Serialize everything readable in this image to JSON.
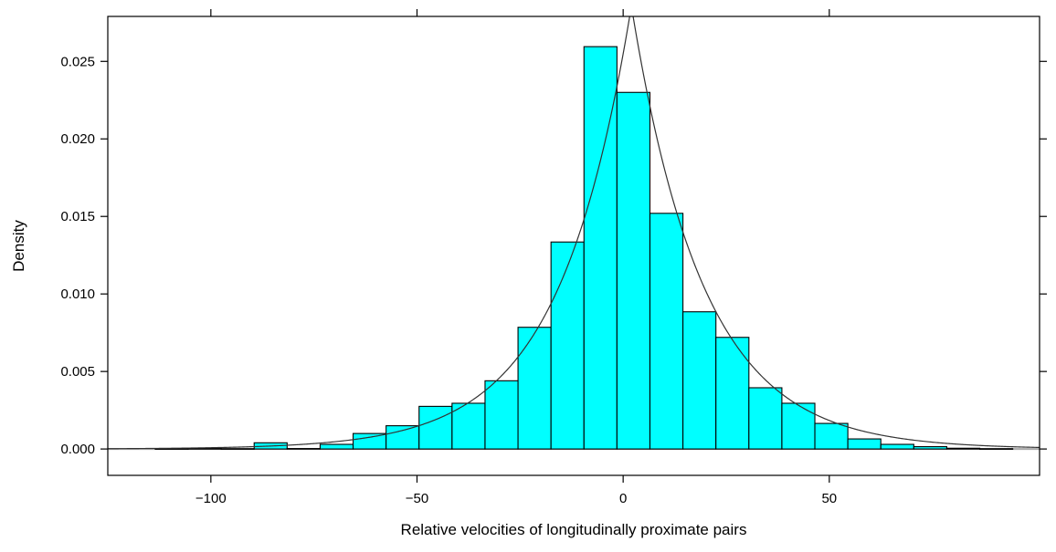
{
  "chart_data": {
    "type": "histogram",
    "title": "",
    "xlabel": "Relative velocities of longitudinally proximate pairs",
    "ylabel": "Density",
    "xlim": [
      -125,
      101
    ],
    "ylim": [
      -0.0017,
      0.0279
    ],
    "x_ticks": [
      -100,
      -50,
      0,
      50
    ],
    "x_tick_labels": [
      "-100",
      "-50",
      "0",
      "50"
    ],
    "y_ticks": [
      0.0,
      0.005,
      0.01,
      0.015,
      0.02,
      0.025
    ],
    "y_tick_labels": [
      "0.000",
      "0.005",
      "0.010",
      "0.015",
      "0.020",
      "0.025"
    ],
    "bar_fill": "#00ffff",
    "bar_stroke": "#000000",
    "bins": [
      {
        "x0": -113.5,
        "x1": -105.5,
        "density": 2e-05
      },
      {
        "x0": -105.5,
        "x1": -97.5,
        "density": 3e-05
      },
      {
        "x0": -97.5,
        "x1": -89.5,
        "density": 2e-05
      },
      {
        "x0": -89.5,
        "x1": -81.5,
        "density": 0.0004
      },
      {
        "x0": -81.5,
        "x1": -73.5,
        "density": 3e-05
      },
      {
        "x0": -73.5,
        "x1": -65.5,
        "density": 0.0003
      },
      {
        "x0": -65.5,
        "x1": -57.5,
        "density": 0.001
      },
      {
        "x0": -57.5,
        "x1": -49.5,
        "density": 0.0015
      },
      {
        "x0": -49.5,
        "x1": -41.5,
        "density": 0.00275
      },
      {
        "x0": -41.5,
        "x1": -33.5,
        "density": 0.00295
      },
      {
        "x0": -33.5,
        "x1": -25.5,
        "density": 0.0044
      },
      {
        "x0": -25.5,
        "x1": -17.5,
        "density": 0.00785
      },
      {
        "x0": -17.5,
        "x1": -9.5,
        "density": 0.01335
      },
      {
        "x0": -9.5,
        "x1": -1.5,
        "density": 0.02595
      },
      {
        "x0": -1.5,
        "x1": 6.5,
        "density": 0.023
      },
      {
        "x0": 6.5,
        "x1": 14.5,
        "density": 0.0152
      },
      {
        "x0": 14.5,
        "x1": 22.5,
        "density": 0.00885
      },
      {
        "x0": 22.5,
        "x1": 30.5,
        "density": 0.0072
      },
      {
        "x0": 30.5,
        "x1": 38.5,
        "density": 0.00395
      },
      {
        "x0": 38.5,
        "x1": 46.5,
        "density": 0.00295
      },
      {
        "x0": 46.5,
        "x1": 54.5,
        "density": 0.00165
      },
      {
        "x0": 54.5,
        "x1": 62.5,
        "density": 0.00065
      },
      {
        "x0": 62.5,
        "x1": 70.5,
        "density": 0.0003
      },
      {
        "x0": 70.5,
        "x1": 78.5,
        "density": 0.00015
      },
      {
        "x0": 78.5,
        "x1": 86.5,
        "density": 5e-05
      },
      {
        "x0": 86.5,
        "x1": 94.5,
        "density": 2e-05
      }
    ],
    "density_curve": {
      "type": "laplace",
      "location": 2,
      "scale": 17.5,
      "color": "#333333"
    },
    "baseline": {
      "y": 0,
      "color": "#aaaaaa"
    }
  }
}
